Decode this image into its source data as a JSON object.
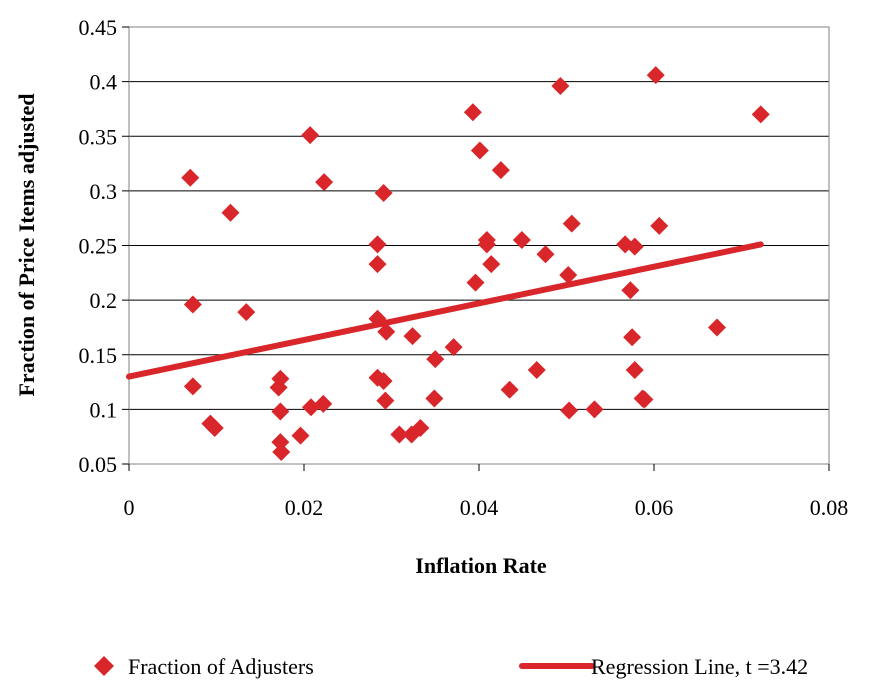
{
  "chart_data": {
    "type": "scatter",
    "title": "",
    "xlabel": "Inflation Rate",
    "ylabel": "Fraction of Price Items adjusted",
    "xlim": [
      0,
      0.08
    ],
    "ylim": [
      0.05,
      0.45
    ],
    "x_ticks": [
      "0",
      "0.02",
      "0.04",
      "0.06",
      "0.08"
    ],
    "y_ticks": [
      "0.05",
      "0.1",
      "0.15",
      "0.2",
      "0.25",
      "0.3",
      "0.35",
      "0.4",
      "0.45"
    ],
    "grid": "horizontal",
    "legend_position": "bottom",
    "series": [
      {
        "name": "Fraction of Adjusters",
        "type": "scatter",
        "color": "#d9262b",
        "marker": "diamond",
        "points": [
          [
            0.007,
            0.312
          ],
          [
            0.0073,
            0.196
          ],
          [
            0.0073,
            0.121
          ],
          [
            0.0093,
            0.087
          ],
          [
            0.0098,
            0.083
          ],
          [
            0.0116,
            0.28
          ],
          [
            0.0134,
            0.189
          ],
          [
            0.0171,
            0.12
          ],
          [
            0.0173,
            0.128
          ],
          [
            0.0173,
            0.098
          ],
          [
            0.0173,
            0.07
          ],
          [
            0.0174,
            0.061
          ],
          [
            0.0196,
            0.076
          ],
          [
            0.0207,
            0.351
          ],
          [
            0.0208,
            0.102
          ],
          [
            0.0222,
            0.105
          ],
          [
            0.0223,
            0.308
          ],
          [
            0.0284,
            0.251
          ],
          [
            0.0284,
            0.233
          ],
          [
            0.0284,
            0.183
          ],
          [
            0.0284,
            0.129
          ],
          [
            0.0291,
            0.298
          ],
          [
            0.0291,
            0.126
          ],
          [
            0.0293,
            0.108
          ],
          [
            0.0294,
            0.171
          ],
          [
            0.0309,
            0.077
          ],
          [
            0.0323,
            0.077
          ],
          [
            0.0324,
            0.167
          ],
          [
            0.0333,
            0.083
          ],
          [
            0.0349,
            0.11
          ],
          [
            0.035,
            0.146
          ],
          [
            0.0371,
            0.157
          ],
          [
            0.0393,
            0.372
          ],
          [
            0.0396,
            0.216
          ],
          [
            0.0401,
            0.337
          ],
          [
            0.0409,
            0.255
          ],
          [
            0.0409,
            0.251
          ],
          [
            0.0414,
            0.233
          ],
          [
            0.0425,
            0.319
          ],
          [
            0.0435,
            0.118
          ],
          [
            0.0449,
            0.255
          ],
          [
            0.0466,
            0.136
          ],
          [
            0.0476,
            0.242
          ],
          [
            0.0493,
            0.396
          ],
          [
            0.0502,
            0.223
          ],
          [
            0.0503,
            0.099
          ],
          [
            0.0506,
            0.27
          ],
          [
            0.0532,
            0.1
          ],
          [
            0.0567,
            0.251
          ],
          [
            0.0573,
            0.209
          ],
          [
            0.0575,
            0.166
          ],
          [
            0.0578,
            0.136
          ],
          [
            0.0578,
            0.249
          ],
          [
            0.0587,
            0.11
          ],
          [
            0.0589,
            0.109
          ],
          [
            0.0602,
            0.406
          ],
          [
            0.0606,
            0.268
          ],
          [
            0.0672,
            0.175
          ],
          [
            0.0722,
            0.37
          ]
        ]
      },
      {
        "name": "Regression Line, t =3.42",
        "type": "line",
        "color": "#d9262b",
        "points": [
          [
            0,
            0.13
          ],
          [
            0.0722,
            0.251
          ]
        ]
      }
    ]
  }
}
